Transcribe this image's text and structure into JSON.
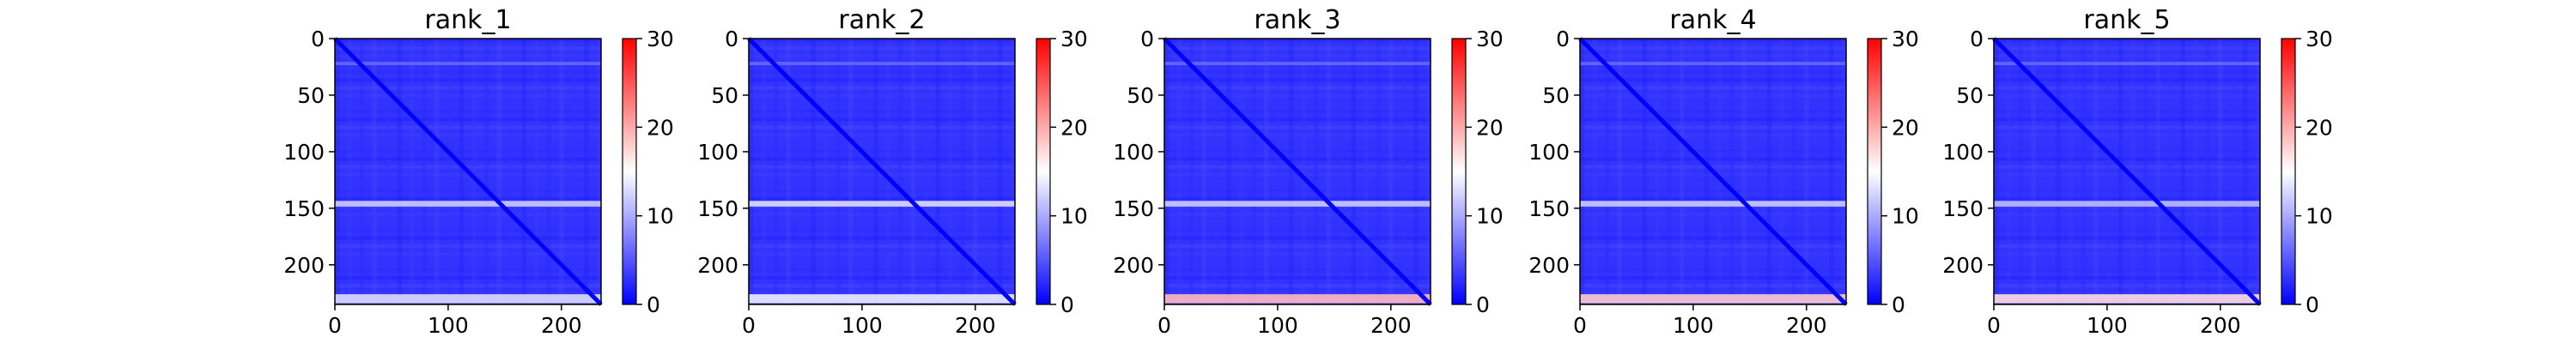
{
  "chart_data": [
    {
      "type": "heatmap",
      "title": "rank_1",
      "size": 235,
      "xticks": [
        0,
        100,
        200
      ],
      "yticks": [
        0,
        50,
        100,
        150,
        200
      ],
      "colorbar": {
        "ticks": [
          0,
          10,
          20,
          30
        ],
        "vmin": 0,
        "vmax": 30,
        "cmap": "bwr"
      },
      "background_value": 3,
      "bands": [
        {
          "axis": "row",
          "at": 146,
          "width": 5,
          "value": 12
        },
        {
          "axis": "row",
          "at": 230,
          "width": 8,
          "value": 13
        },
        {
          "axis": "row",
          "at": 22,
          "width": 3,
          "value": 6
        }
      ],
      "diagonal_value": 0
    },
    {
      "type": "heatmap",
      "title": "rank_2",
      "size": 235,
      "xticks": [
        0,
        100,
        200
      ],
      "yticks": [
        0,
        50,
        100,
        150,
        200
      ],
      "colorbar": {
        "ticks": [
          0,
          10,
          20,
          30
        ],
        "vmin": 0,
        "vmax": 30,
        "cmap": "bwr"
      },
      "background_value": 3,
      "bands": [
        {
          "axis": "row",
          "at": 146,
          "width": 5,
          "value": 13
        },
        {
          "axis": "row",
          "at": 230,
          "width": 8,
          "value": 14
        },
        {
          "axis": "row",
          "at": 22,
          "width": 3,
          "value": 6
        }
      ],
      "diagonal_value": 0
    },
    {
      "type": "heatmap",
      "title": "rank_3",
      "size": 235,
      "xticks": [
        0,
        100,
        200
      ],
      "yticks": [
        0,
        50,
        100,
        150,
        200
      ],
      "colorbar": {
        "ticks": [
          0,
          10,
          20,
          30
        ],
        "vmin": 0,
        "vmax": 30,
        "cmap": "bwr"
      },
      "background_value": 3,
      "bands": [
        {
          "axis": "row",
          "at": 146,
          "width": 5,
          "value": 12
        },
        {
          "axis": "row",
          "at": 230,
          "width": 8,
          "value": 19
        },
        {
          "axis": "row",
          "at": 22,
          "width": 3,
          "value": 6
        }
      ],
      "diagonal_value": 0
    },
    {
      "type": "heatmap",
      "title": "rank_4",
      "size": 235,
      "xticks": [
        0,
        100,
        200
      ],
      "yticks": [
        0,
        50,
        100,
        150,
        200
      ],
      "colorbar": {
        "ticks": [
          0,
          10,
          20,
          30
        ],
        "vmin": 0,
        "vmax": 30,
        "cmap": "bwr"
      },
      "background_value": 3,
      "bands": [
        {
          "axis": "row",
          "at": 146,
          "width": 5,
          "value": 12
        },
        {
          "axis": "row",
          "at": 230,
          "width": 8,
          "value": 18
        },
        {
          "axis": "row",
          "at": 22,
          "width": 3,
          "value": 6
        }
      ],
      "diagonal_value": 0
    },
    {
      "type": "heatmap",
      "title": "rank_5",
      "size": 235,
      "xticks": [
        0,
        100,
        200
      ],
      "yticks": [
        0,
        50,
        100,
        150,
        200
      ],
      "colorbar": {
        "ticks": [
          0,
          10,
          20,
          30
        ],
        "vmin": 0,
        "vmax": 30,
        "cmap": "bwr"
      },
      "background_value": 3,
      "bands": [
        {
          "axis": "row",
          "at": 146,
          "width": 5,
          "value": 11
        },
        {
          "axis": "row",
          "at": 230,
          "width": 8,
          "value": 17
        },
        {
          "axis": "row",
          "at": 22,
          "width": 3,
          "value": 6
        }
      ],
      "diagonal_value": 0
    }
  ]
}
